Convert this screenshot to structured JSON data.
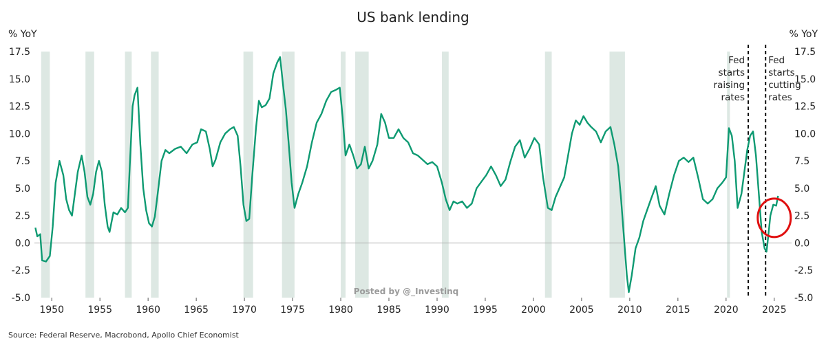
{
  "chart_data": {
    "type": "line",
    "title": "US bank lending",
    "y_unit_left": "% YoY",
    "y_unit_right": "% YoY",
    "ylim": [
      -5.0,
      17.5
    ],
    "xlim": [
      1948.2,
      2026.8
    ],
    "x_ticks": [
      1950,
      1955,
      1960,
      1965,
      1970,
      1975,
      1980,
      1985,
      1990,
      1995,
      2000,
      2005,
      2010,
      2015,
      2020,
      2025
    ],
    "y_ticks": [
      "17.5",
      "15.0",
      "12.5",
      "10.0",
      "7.5",
      "5.0",
      "2.5",
      "0.0",
      "-2.5",
      "-5.0"
    ],
    "grid": false,
    "zero_line": true,
    "series_color": "#0e9a72",
    "recession_color": "#dde8e3",
    "recessions": [
      [
        1948.9,
        1949.8
      ],
      [
        1953.5,
        1954.4
      ],
      [
        1957.6,
        1958.3
      ],
      [
        1960.3,
        1961.1
      ],
      [
        1969.9,
        1970.9
      ],
      [
        1973.9,
        1975.2
      ],
      [
        1980.0,
        1980.5
      ],
      [
        1981.5,
        1982.9
      ],
      [
        1990.5,
        1991.2
      ],
      [
        2001.2,
        2001.9
      ],
      [
        2007.9,
        2009.5
      ],
      [
        2020.1,
        2020.4
      ]
    ],
    "series": [
      {
        "points": [
          [
            1948.3,
            1.4
          ],
          [
            1948.5,
            0.6
          ],
          [
            1948.8,
            0.8
          ],
          [
            1949.0,
            -1.6
          ],
          [
            1949.4,
            -1.7
          ],
          [
            1949.8,
            -1.2
          ],
          [
            1950.1,
            1.5
          ],
          [
            1950.4,
            5.5
          ],
          [
            1950.8,
            7.5
          ],
          [
            1951.2,
            6.2
          ],
          [
            1951.5,
            4.0
          ],
          [
            1951.8,
            3.0
          ],
          [
            1952.1,
            2.5
          ],
          [
            1952.4,
            4.5
          ],
          [
            1952.7,
            6.5
          ],
          [
            1953.1,
            8.0
          ],
          [
            1953.4,
            6.5
          ],
          [
            1953.7,
            4.2
          ],
          [
            1954.0,
            3.5
          ],
          [
            1954.3,
            4.5
          ],
          [
            1954.6,
            6.5
          ],
          [
            1954.9,
            7.5
          ],
          [
            1955.2,
            6.5
          ],
          [
            1955.5,
            3.5
          ],
          [
            1955.8,
            1.5
          ],
          [
            1956.0,
            1.0
          ],
          [
            1956.4,
            2.8
          ],
          [
            1956.8,
            2.6
          ],
          [
            1957.2,
            3.2
          ],
          [
            1957.6,
            2.8
          ],
          [
            1957.9,
            3.2
          ],
          [
            1958.1,
            7.0
          ],
          [
            1958.4,
            12.5
          ],
          [
            1958.6,
            13.5
          ],
          [
            1958.9,
            14.2
          ],
          [
            1959.2,
            9.0
          ],
          [
            1959.5,
            5.0
          ],
          [
            1959.8,
            3.0
          ],
          [
            1960.1,
            1.8
          ],
          [
            1960.4,
            1.5
          ],
          [
            1960.7,
            2.4
          ],
          [
            1961.0,
            4.5
          ],
          [
            1961.4,
            7.5
          ],
          [
            1961.8,
            8.5
          ],
          [
            1962.2,
            8.2
          ],
          [
            1962.8,
            8.6
          ],
          [
            1963.4,
            8.8
          ],
          [
            1964.0,
            8.2
          ],
          [
            1964.6,
            9.0
          ],
          [
            1965.1,
            9.2
          ],
          [
            1965.5,
            10.4
          ],
          [
            1966.0,
            10.2
          ],
          [
            1966.4,
            8.6
          ],
          [
            1966.7,
            7.0
          ],
          [
            1967.0,
            7.6
          ],
          [
            1967.5,
            9.2
          ],
          [
            1968.0,
            10.0
          ],
          [
            1968.5,
            10.4
          ],
          [
            1968.9,
            10.6
          ],
          [
            1969.3,
            9.8
          ],
          [
            1969.6,
            7.0
          ],
          [
            1969.9,
            3.5
          ],
          [
            1970.2,
            2.0
          ],
          [
            1970.5,
            2.2
          ],
          [
            1970.8,
            6.0
          ],
          [
            1971.2,
            10.5
          ],
          [
            1971.5,
            13.0
          ],
          [
            1971.8,
            12.4
          ],
          [
            1972.2,
            12.6
          ],
          [
            1972.6,
            13.2
          ],
          [
            1973.0,
            15.5
          ],
          [
            1973.4,
            16.5
          ],
          [
            1973.7,
            17.0
          ],
          [
            1974.0,
            14.5
          ],
          [
            1974.3,
            12.2
          ],
          [
            1974.6,
            9.0
          ],
          [
            1974.9,
            5.5
          ],
          [
            1975.2,
            3.2
          ],
          [
            1975.6,
            4.5
          ],
          [
            1976.0,
            5.5
          ],
          [
            1976.5,
            7.0
          ],
          [
            1977.0,
            9.2
          ],
          [
            1977.5,
            11.0
          ],
          [
            1978.0,
            11.8
          ],
          [
            1978.5,
            13.0
          ],
          [
            1979.0,
            13.8
          ],
          [
            1979.5,
            14.0
          ],
          [
            1979.9,
            14.2
          ],
          [
            1980.2,
            11.5
          ],
          [
            1980.5,
            8.0
          ],
          [
            1980.9,
            9.0
          ],
          [
            1981.3,
            8.0
          ],
          [
            1981.7,
            6.8
          ],
          [
            1982.1,
            7.2
          ],
          [
            1982.5,
            8.8
          ],
          [
            1982.9,
            6.8
          ],
          [
            1983.3,
            7.5
          ],
          [
            1983.8,
            9.0
          ],
          [
            1984.2,
            11.8
          ],
          [
            1984.6,
            11.0
          ],
          [
            1985.0,
            9.6
          ],
          [
            1985.5,
            9.6
          ],
          [
            1986.0,
            10.4
          ],
          [
            1986.5,
            9.6
          ],
          [
            1987.0,
            9.2
          ],
          [
            1987.5,
            8.2
          ],
          [
            1988.0,
            8.0
          ],
          [
            1988.5,
            7.6
          ],
          [
            1989.0,
            7.2
          ],
          [
            1989.5,
            7.4
          ],
          [
            1990.0,
            7.0
          ],
          [
            1990.5,
            5.5
          ],
          [
            1990.9,
            4.0
          ],
          [
            1991.3,
            3.0
          ],
          [
            1991.7,
            3.8
          ],
          [
            1992.1,
            3.6
          ],
          [
            1992.6,
            3.8
          ],
          [
            1993.1,
            3.2
          ],
          [
            1993.6,
            3.6
          ],
          [
            1994.1,
            5.0
          ],
          [
            1994.6,
            5.6
          ],
          [
            1995.1,
            6.2
          ],
          [
            1995.6,
            7.0
          ],
          [
            1996.1,
            6.2
          ],
          [
            1996.6,
            5.2
          ],
          [
            1997.1,
            5.8
          ],
          [
            1997.6,
            7.4
          ],
          [
            1998.1,
            8.8
          ],
          [
            1998.6,
            9.4
          ],
          [
            1999.1,
            7.8
          ],
          [
            1999.6,
            8.6
          ],
          [
            2000.1,
            9.6
          ],
          [
            2000.6,
            9.0
          ],
          [
            2001.0,
            6.0
          ],
          [
            2001.5,
            3.2
          ],
          [
            2001.9,
            3.0
          ],
          [
            2002.3,
            4.2
          ],
          [
            2002.8,
            5.2
          ],
          [
            2003.2,
            6.0
          ],
          [
            2003.6,
            8.0
          ],
          [
            2004.0,
            10.0
          ],
          [
            2004.4,
            11.2
          ],
          [
            2004.8,
            10.8
          ],
          [
            2005.2,
            11.6
          ],
          [
            2005.6,
            11.0
          ],
          [
            2006.0,
            10.6
          ],
          [
            2006.5,
            10.2
          ],
          [
            2007.0,
            9.2
          ],
          [
            2007.5,
            10.2
          ],
          [
            2008.0,
            10.6
          ],
          [
            2008.4,
            9.0
          ],
          [
            2008.8,
            7.0
          ],
          [
            2009.1,
            4.0
          ],
          [
            2009.4,
            0.5
          ],
          [
            2009.7,
            -3.0
          ],
          [
            2009.9,
            -4.5
          ],
          [
            2010.2,
            -3.0
          ],
          [
            2010.6,
            -0.5
          ],
          [
            2011.0,
            0.5
          ],
          [
            2011.4,
            2.0
          ],
          [
            2011.8,
            3.0
          ],
          [
            2012.2,
            4.0
          ],
          [
            2012.7,
            5.2
          ],
          [
            2013.1,
            3.4
          ],
          [
            2013.6,
            2.6
          ],
          [
            2014.1,
            4.5
          ],
          [
            2014.6,
            6.2
          ],
          [
            2015.1,
            7.5
          ],
          [
            2015.6,
            7.8
          ],
          [
            2016.1,
            7.4
          ],
          [
            2016.6,
            7.8
          ],
          [
            2017.1,
            6.0
          ],
          [
            2017.6,
            4.0
          ],
          [
            2018.1,
            3.6
          ],
          [
            2018.6,
            4.0
          ],
          [
            2019.1,
            5.0
          ],
          [
            2019.6,
            5.5
          ],
          [
            2020.0,
            6.0
          ],
          [
            2020.3,
            10.5
          ],
          [
            2020.6,
            9.8
          ],
          [
            2020.9,
            7.5
          ],
          [
            2021.2,
            3.2
          ],
          [
            2021.6,
            4.5
          ],
          [
            2021.9,
            6.5
          ],
          [
            2022.2,
            8.5
          ],
          [
            2022.5,
            9.8
          ],
          [
            2022.8,
            10.2
          ],
          [
            2023.1,
            8.0
          ],
          [
            2023.4,
            4.5
          ],
          [
            2023.7,
            1.0
          ],
          [
            2024.0,
            -0.5
          ],
          [
            2024.2,
            -0.8
          ],
          [
            2024.4,
            0.8
          ],
          [
            2024.6,
            2.5
          ],
          [
            2024.9,
            3.5
          ],
          [
            2025.2,
            3.4
          ],
          [
            2025.4,
            4.3
          ]
        ]
      }
    ],
    "annotations": [
      {
        "x": 2022.3,
        "lines": [
          "Fed",
          "starts",
          "raising",
          "rates"
        ],
        "anchor": "end"
      },
      {
        "x": 2024.1,
        "lines": [
          "Fed",
          "starts",
          "cutting",
          "rates"
        ],
        "anchor": "start"
      }
    ],
    "highlight": {
      "x": 2025.0,
      "y": 2.3,
      "color": "#e01010"
    }
  },
  "watermark": "Posted by @_Investinq",
  "source": "Source: Federal Reserve, Macrobond, Apollo Chief Economist"
}
